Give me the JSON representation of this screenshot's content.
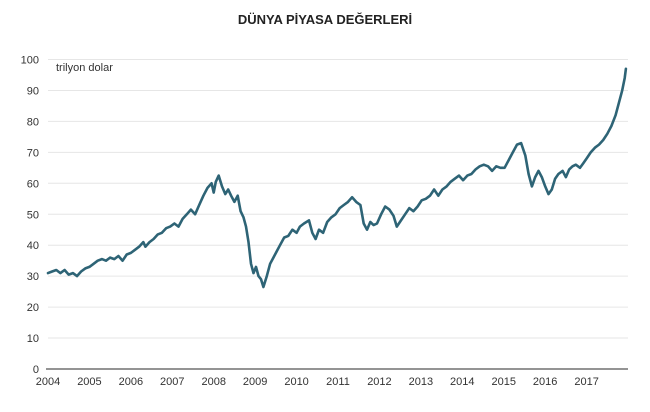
{
  "chart_data": {
    "type": "line",
    "title": "DÜNYA PİYASA DEĞERLERİ",
    "unit_label": "trilyon dolar",
    "xlabel": "",
    "ylabel": "trilyon dolar",
    "ylim": [
      0,
      100
    ],
    "xlim": [
      2004,
      2017.95
    ],
    "y_ticks": [
      0,
      10,
      20,
      30,
      40,
      50,
      60,
      70,
      80,
      90,
      100
    ],
    "x_ticks": [
      "2004",
      "2005",
      "2006",
      "2007",
      "2008",
      "2009",
      "2010",
      "2011",
      "2012",
      "2013",
      "2014",
      "2015",
      "2016",
      "2017"
    ],
    "grid": true,
    "legend": "none",
    "colors": {
      "line": "#2e6476",
      "grid": "#e6e6e6",
      "baseline": "#555555",
      "text": "#333333"
    },
    "series": [
      {
        "name": "trilyon dolar",
        "points": [
          [
            2004.0,
            31
          ],
          [
            2004.1,
            31.5
          ],
          [
            2004.2,
            32
          ],
          [
            2004.3,
            31
          ],
          [
            2004.4,
            32
          ],
          [
            2004.5,
            30.5
          ],
          [
            2004.6,
            31
          ],
          [
            2004.7,
            30
          ],
          [
            2004.8,
            31.5
          ],
          [
            2004.9,
            32.5
          ],
          [
            2005.0,
            33
          ],
          [
            2005.1,
            34
          ],
          [
            2005.2,
            35
          ],
          [
            2005.3,
            35.5
          ],
          [
            2005.4,
            35
          ],
          [
            2005.5,
            36
          ],
          [
            2005.6,
            35.5
          ],
          [
            2005.7,
            36.5
          ],
          [
            2005.8,
            35
          ],
          [
            2005.9,
            37
          ],
          [
            2006.0,
            37.5
          ],
          [
            2006.1,
            38.5
          ],
          [
            2006.2,
            39.5
          ],
          [
            2006.3,
            41
          ],
          [
            2006.35,
            39.5
          ],
          [
            2006.45,
            41
          ],
          [
            2006.55,
            42
          ],
          [
            2006.65,
            43.5
          ],
          [
            2006.75,
            44
          ],
          [
            2006.85,
            45.5
          ],
          [
            2006.95,
            46
          ],
          [
            2007.05,
            47
          ],
          [
            2007.15,
            46
          ],
          [
            2007.25,
            48.5
          ],
          [
            2007.35,
            50
          ],
          [
            2007.45,
            51.5
          ],
          [
            2007.55,
            50
          ],
          [
            2007.65,
            53
          ],
          [
            2007.75,
            56
          ],
          [
            2007.85,
            58.5
          ],
          [
            2007.95,
            60
          ],
          [
            2008.0,
            57
          ],
          [
            2008.05,
            60.5
          ],
          [
            2008.12,
            62.5
          ],
          [
            2008.2,
            59
          ],
          [
            2008.28,
            56.5
          ],
          [
            2008.35,
            58
          ],
          [
            2008.42,
            56
          ],
          [
            2008.5,
            54
          ],
          [
            2008.58,
            56
          ],
          [
            2008.65,
            51
          ],
          [
            2008.72,
            49
          ],
          [
            2008.78,
            46
          ],
          [
            2008.84,
            41
          ],
          [
            2008.9,
            34
          ],
          [
            2008.96,
            31
          ],
          [
            2009.02,
            33
          ],
          [
            2009.08,
            30
          ],
          [
            2009.14,
            29
          ],
          [
            2009.2,
            26.5
          ],
          [
            2009.28,
            30
          ],
          [
            2009.36,
            34
          ],
          [
            2009.44,
            36
          ],
          [
            2009.52,
            38
          ],
          [
            2009.6,
            40
          ],
          [
            2009.7,
            42.5
          ],
          [
            2009.8,
            43
          ],
          [
            2009.9,
            45
          ],
          [
            2010.0,
            44
          ],
          [
            2010.08,
            46
          ],
          [
            2010.18,
            47
          ],
          [
            2010.3,
            48
          ],
          [
            2010.38,
            44
          ],
          [
            2010.46,
            42
          ],
          [
            2010.54,
            45
          ],
          [
            2010.64,
            44
          ],
          [
            2010.74,
            47.5
          ],
          [
            2010.84,
            49
          ],
          [
            2010.94,
            50
          ],
          [
            2011.04,
            52
          ],
          [
            2011.14,
            53
          ],
          [
            2011.24,
            54
          ],
          [
            2011.34,
            55.5
          ],
          [
            2011.44,
            54
          ],
          [
            2011.54,
            53
          ],
          [
            2011.62,
            47
          ],
          [
            2011.7,
            45
          ],
          [
            2011.78,
            47.5
          ],
          [
            2011.86,
            46.5
          ],
          [
            2011.94,
            47
          ],
          [
            2012.04,
            50
          ],
          [
            2012.14,
            52.5
          ],
          [
            2012.24,
            51.5
          ],
          [
            2012.34,
            49.5
          ],
          [
            2012.42,
            46
          ],
          [
            2012.52,
            48
          ],
          [
            2012.62,
            50
          ],
          [
            2012.72,
            52
          ],
          [
            2012.82,
            51
          ],
          [
            2012.92,
            52.5
          ],
          [
            2013.02,
            54.5
          ],
          [
            2013.12,
            55
          ],
          [
            2013.22,
            56
          ],
          [
            2013.32,
            58
          ],
          [
            2013.42,
            56
          ],
          [
            2013.52,
            58
          ],
          [
            2013.62,
            59
          ],
          [
            2013.72,
            60.5
          ],
          [
            2013.82,
            61.5
          ],
          [
            2013.92,
            62.5
          ],
          [
            2014.02,
            61
          ],
          [
            2014.12,
            62.5
          ],
          [
            2014.22,
            63
          ],
          [
            2014.32,
            64.5
          ],
          [
            2014.42,
            65.5
          ],
          [
            2014.52,
            66
          ],
          [
            2014.62,
            65.5
          ],
          [
            2014.72,
            64
          ],
          [
            2014.82,
            65.5
          ],
          [
            2014.92,
            65
          ],
          [
            2015.02,
            65
          ],
          [
            2015.12,
            67.5
          ],
          [
            2015.22,
            70
          ],
          [
            2015.32,
            72.5
          ],
          [
            2015.42,
            73
          ],
          [
            2015.52,
            69
          ],
          [
            2015.6,
            63
          ],
          [
            2015.68,
            59
          ],
          [
            2015.76,
            62
          ],
          [
            2015.84,
            64
          ],
          [
            2015.92,
            62
          ],
          [
            2016.0,
            59
          ],
          [
            2016.08,
            56.5
          ],
          [
            2016.16,
            58
          ],
          [
            2016.24,
            61.5
          ],
          [
            2016.32,
            63
          ],
          [
            2016.42,
            64
          ],
          [
            2016.5,
            62
          ],
          [
            2016.58,
            64.5
          ],
          [
            2016.66,
            65.5
          ],
          [
            2016.74,
            66
          ],
          [
            2016.84,
            65
          ],
          [
            2016.92,
            66.5
          ],
          [
            2017.0,
            68
          ],
          [
            2017.1,
            70
          ],
          [
            2017.2,
            71.5
          ],
          [
            2017.3,
            72.5
          ],
          [
            2017.4,
            74
          ],
          [
            2017.5,
            76
          ],
          [
            2017.6,
            78.5
          ],
          [
            2017.7,
            82
          ],
          [
            2017.78,
            86
          ],
          [
            2017.86,
            90
          ],
          [
            2017.92,
            94
          ],
          [
            2017.95,
            97
          ]
        ]
      }
    ]
  }
}
